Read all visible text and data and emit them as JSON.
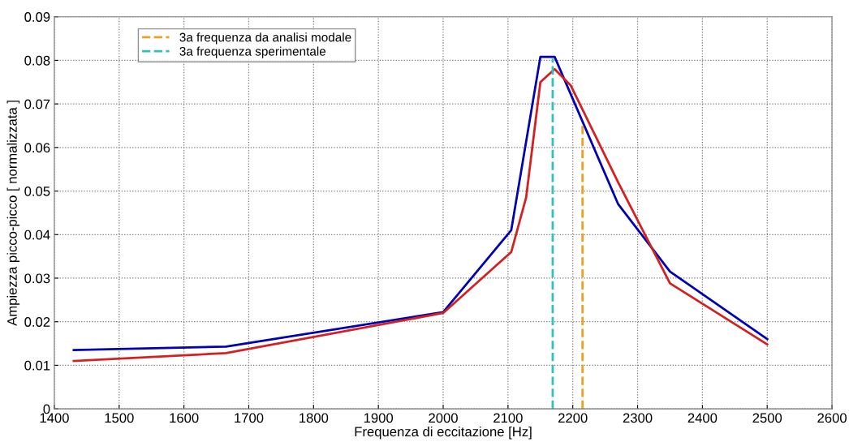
{
  "chart_data": {
    "type": "line",
    "xlabel": "Frequenza di eccitazione [Hz]",
    "ylabel": "Ampiezza picco-picco [ normalizzata ]",
    "xlim": [
      1400,
      2600
    ],
    "xticks": [
      1400,
      1500,
      1600,
      1700,
      1800,
      1900,
      2000,
      2100,
      2200,
      2300,
      2400,
      2500,
      2600
    ],
    "ylim": [
      0,
      0.09
    ],
    "yticks": [
      0,
      0.01,
      0.02,
      0.03,
      0.04,
      0.05,
      0.06,
      0.07,
      0.08,
      0.09
    ],
    "grid": true,
    "legend": "top left",
    "line_style": "solid",
    "marker": "none",
    "series": [
      {
        "color": "#0000b4",
        "x": [
          1430,
          1665,
          2000,
          2105,
          2150,
          2172,
          2270,
          2350,
          2500
        ],
        "values": [
          0.0135,
          0.0143,
          0.0222,
          0.041,
          0.0808,
          0.0808,
          0.047,
          0.0315,
          0.016
        ]
      },
      {
        "color": "#d42020",
        "x": [
          1430,
          1665,
          2000,
          2105,
          2128,
          2150,
          2172,
          2197,
          2270,
          2350,
          2500
        ],
        "values": [
          0.011,
          0.0128,
          0.022,
          0.036,
          0.0485,
          0.075,
          0.078,
          0.0742,
          0.052,
          0.0288,
          0.0148
        ]
      },
      {
        "name": "3a frequenza da analisi modale",
        "color": "#f0a020",
        "line_style": "dashed",
        "x": [
          2215,
          2215
        ],
        "values": [
          0,
          0.0655
        ]
      },
      {
        "name": "3a frequenza sperimentale",
        "color": "#30c0c0",
        "line_style": "dashed",
        "x": [
          2169,
          2169
        ],
        "values": [
          0,
          0.0804
        ]
      }
    ]
  }
}
